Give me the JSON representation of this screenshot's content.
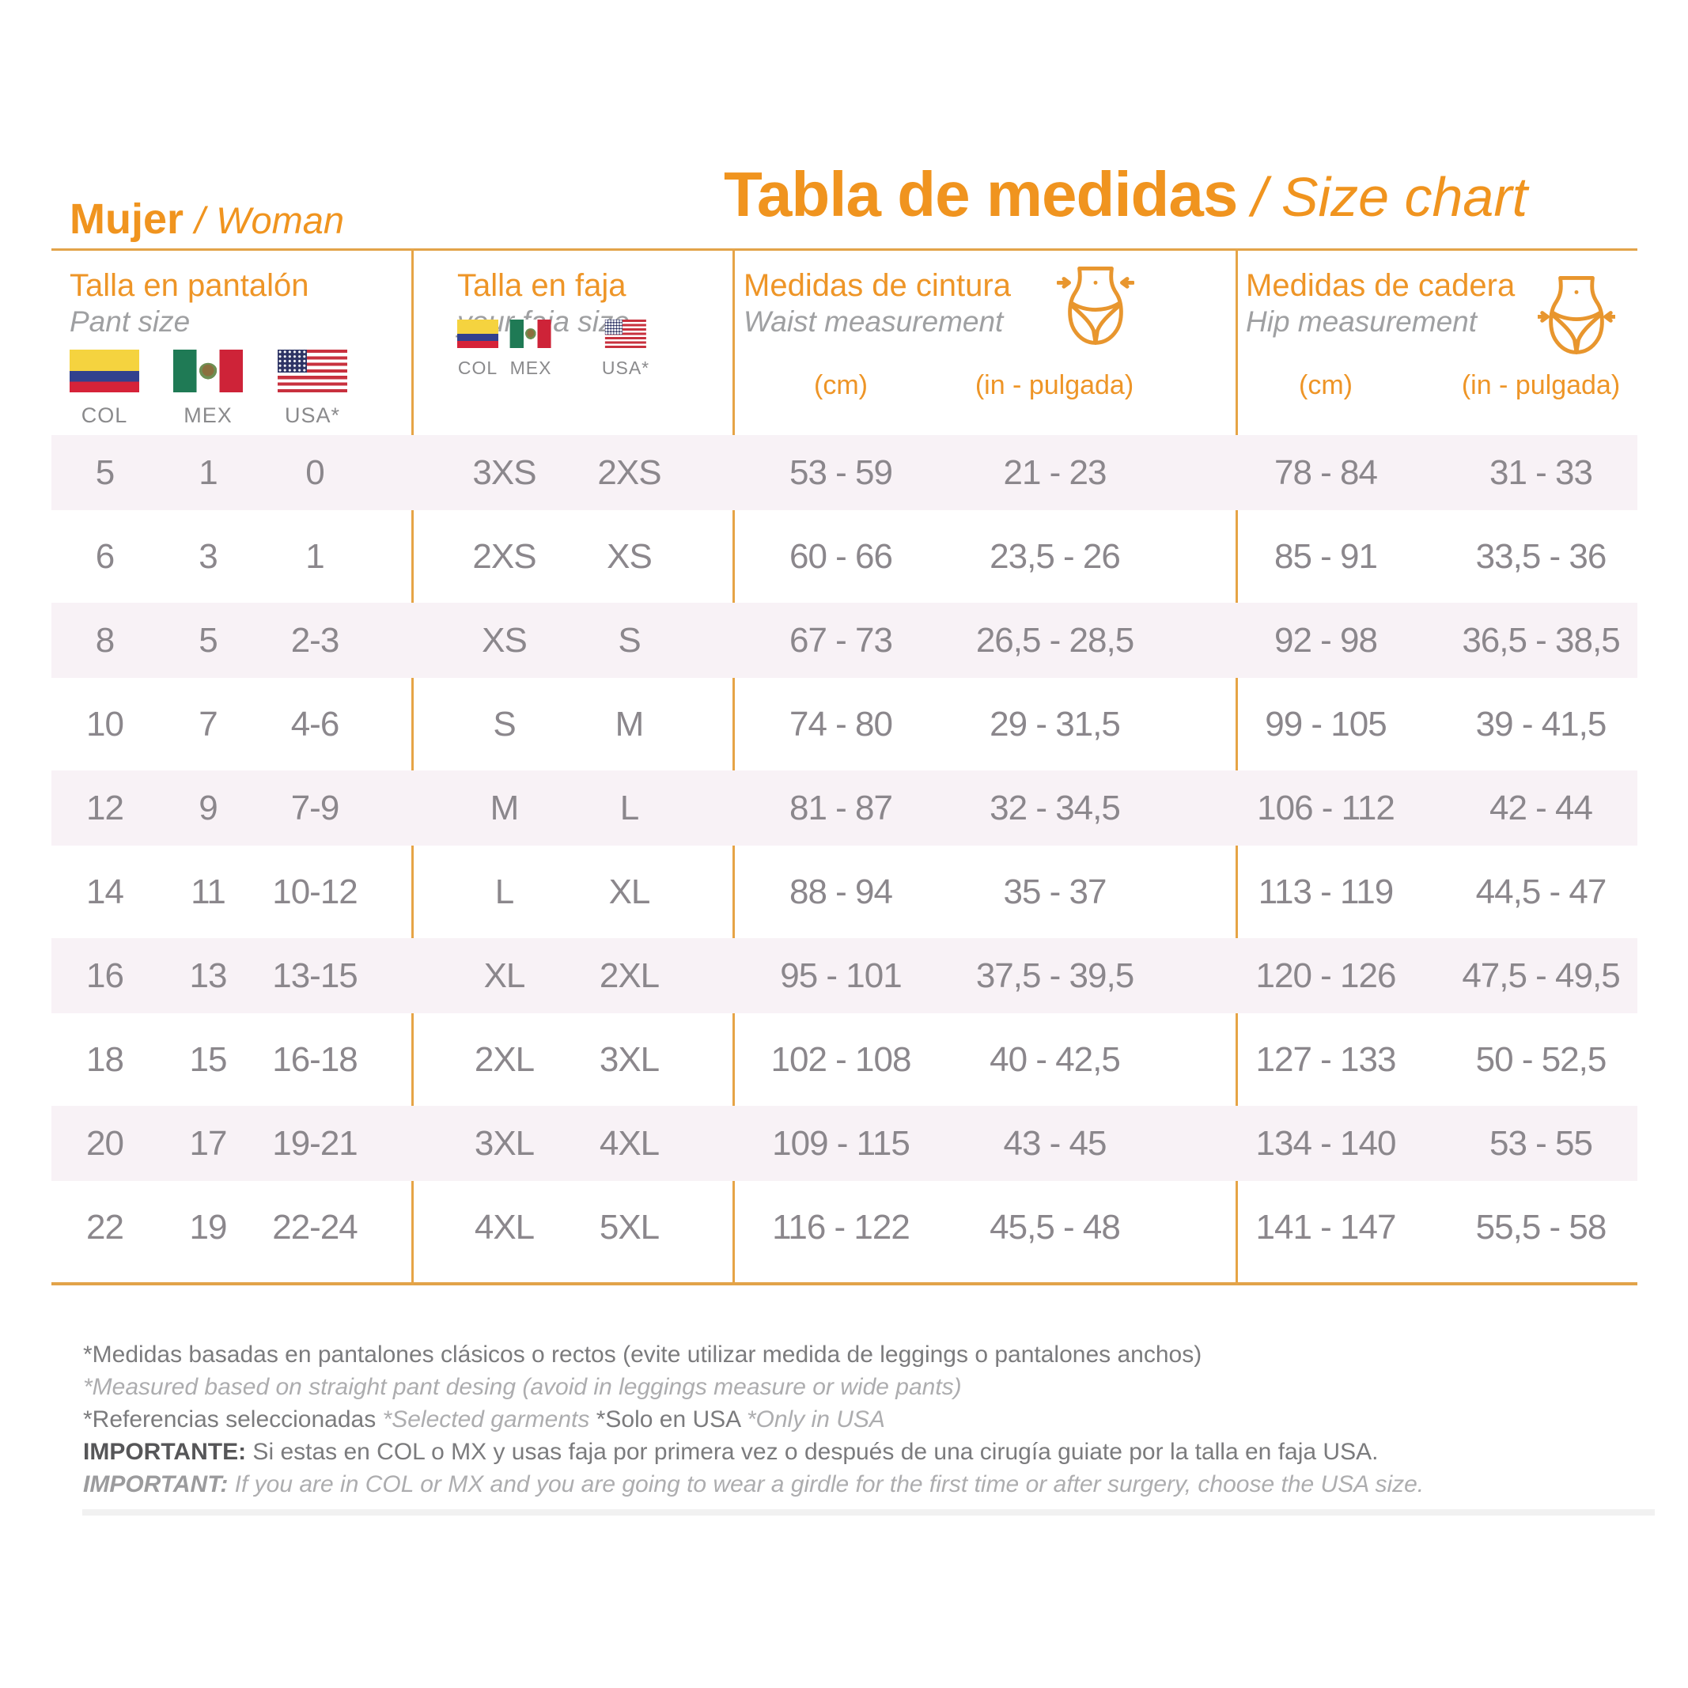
{
  "header": {
    "left_title_es": "Mujer",
    "left_title_sep": "/",
    "left_title_en": "Woman",
    "main_title_es": "Tabla de medidas",
    "main_title_sep": "/",
    "main_title_en": "Size chart"
  },
  "columns": {
    "pant": {
      "title_es": "Talla en pantalón",
      "title_en": "Pant size",
      "flags": [
        {
          "code": "col",
          "label": "COL"
        },
        {
          "code": "mex",
          "label": "MEX"
        },
        {
          "code": "usa",
          "label": "USA*"
        }
      ]
    },
    "faja": {
      "title_es": "Talla en faja",
      "title_en": "your faja size",
      "flags": [
        {
          "code": "col",
          "label": "COL"
        },
        {
          "code": "mex",
          "label": "MEX"
        },
        {
          "code": "usa",
          "label": "USA*"
        }
      ]
    },
    "waist": {
      "title_es": "Medidas de cintura",
      "title_en": "Waist measurement",
      "unit_cm": "(cm)",
      "unit_in": "(in - pulgada)"
    },
    "hip": {
      "title_es": "Medidas de cadera",
      "title_en": "Hip measurement",
      "unit_cm": "(cm)",
      "unit_in": "(in - pulgada)"
    }
  },
  "chart_data": {
    "type": "table",
    "title": "Tabla de medidas / Size chart",
    "subtitle": "Mujer / Woman",
    "column_headers": [
      "Pant COL",
      "Pant MEX",
      "Pant USA*",
      "Faja COL/MEX",
      "Faja USA*",
      "Waist (cm)",
      "Waist (in - pulgada)",
      "Hip (cm)",
      "Hip (in - pulgada)"
    ],
    "rows": [
      [
        "5",
        "1",
        "0",
        "3XS",
        "2XS",
        "53 - 59",
        "21 - 23",
        "78 - 84",
        "31 - 33"
      ],
      [
        "6",
        "3",
        "1",
        "2XS",
        "XS",
        "60 - 66",
        "23,5 - 26",
        "85 - 91",
        "33,5 - 36"
      ],
      [
        "8",
        "5",
        "2-3",
        "XS",
        "S",
        "67 - 73",
        "26,5 - 28,5",
        "92 - 98",
        "36,5 - 38,5"
      ],
      [
        "10",
        "7",
        "4-6",
        "S",
        "M",
        "74 - 80",
        "29 - 31,5",
        "99 - 105",
        "39 - 41,5"
      ],
      [
        "12",
        "9",
        "7-9",
        "M",
        "L",
        "81 - 87",
        "32 - 34,5",
        "106 - 112",
        "42 - 44"
      ],
      [
        "14",
        "11",
        "10-12",
        "L",
        "XL",
        "88 - 94",
        "35 - 37",
        "113 - 119",
        "44,5 - 47"
      ],
      [
        "16",
        "13",
        "13-15",
        "XL",
        "2XL",
        "95 - 101",
        "37,5 - 39,5",
        "120 - 126",
        "47,5 - 49,5"
      ],
      [
        "18",
        "15",
        "16-18",
        "2XL",
        "3XL",
        "102 - 108",
        "40 - 42,5",
        "127 - 133",
        "50 - 52,5"
      ],
      [
        "20",
        "17",
        "19-21",
        "3XL",
        "4XL",
        "109 - 115",
        "43 - 45",
        "134 - 140",
        "53 - 55"
      ],
      [
        "22",
        "19",
        "22-24",
        "4XL",
        "5XL",
        "116 - 122",
        "45,5 - 48",
        "141 - 147",
        "55,5 - 58"
      ]
    ]
  },
  "notes": {
    "line1_es": "*Medidas basadas en pantalones clásicos o rectos (evite utilizar medida de leggings o pantalones anchos)",
    "line2_en": "*Measured based on straight pant desing (avoid in leggings measure or wide pants)",
    "line3_es1": "*Referencias seleccionadas ",
    "line3_en1": "*Selected garments ",
    "line3_es2": "*Solo en USA ",
    "line3_en2": "*Only in USA",
    "line4_label": "IMPORTANTE:",
    "line4_text": " Si estas en COL o MX y usas faja por primera vez o después de una cirugía guiate por la talla en faja USA.",
    "line5_label": "IMPORTANT:",
    "line5_text": " If you are in COL or MX and you are going to wear a girdle for the first time or after surgery, choose the USA size."
  },
  "colors": {
    "accent_orange": "#F0941F",
    "rule_gold": "#E2A349",
    "row_band_pink": "#F8F2F6",
    "data_gray": "#8B878C"
  }
}
